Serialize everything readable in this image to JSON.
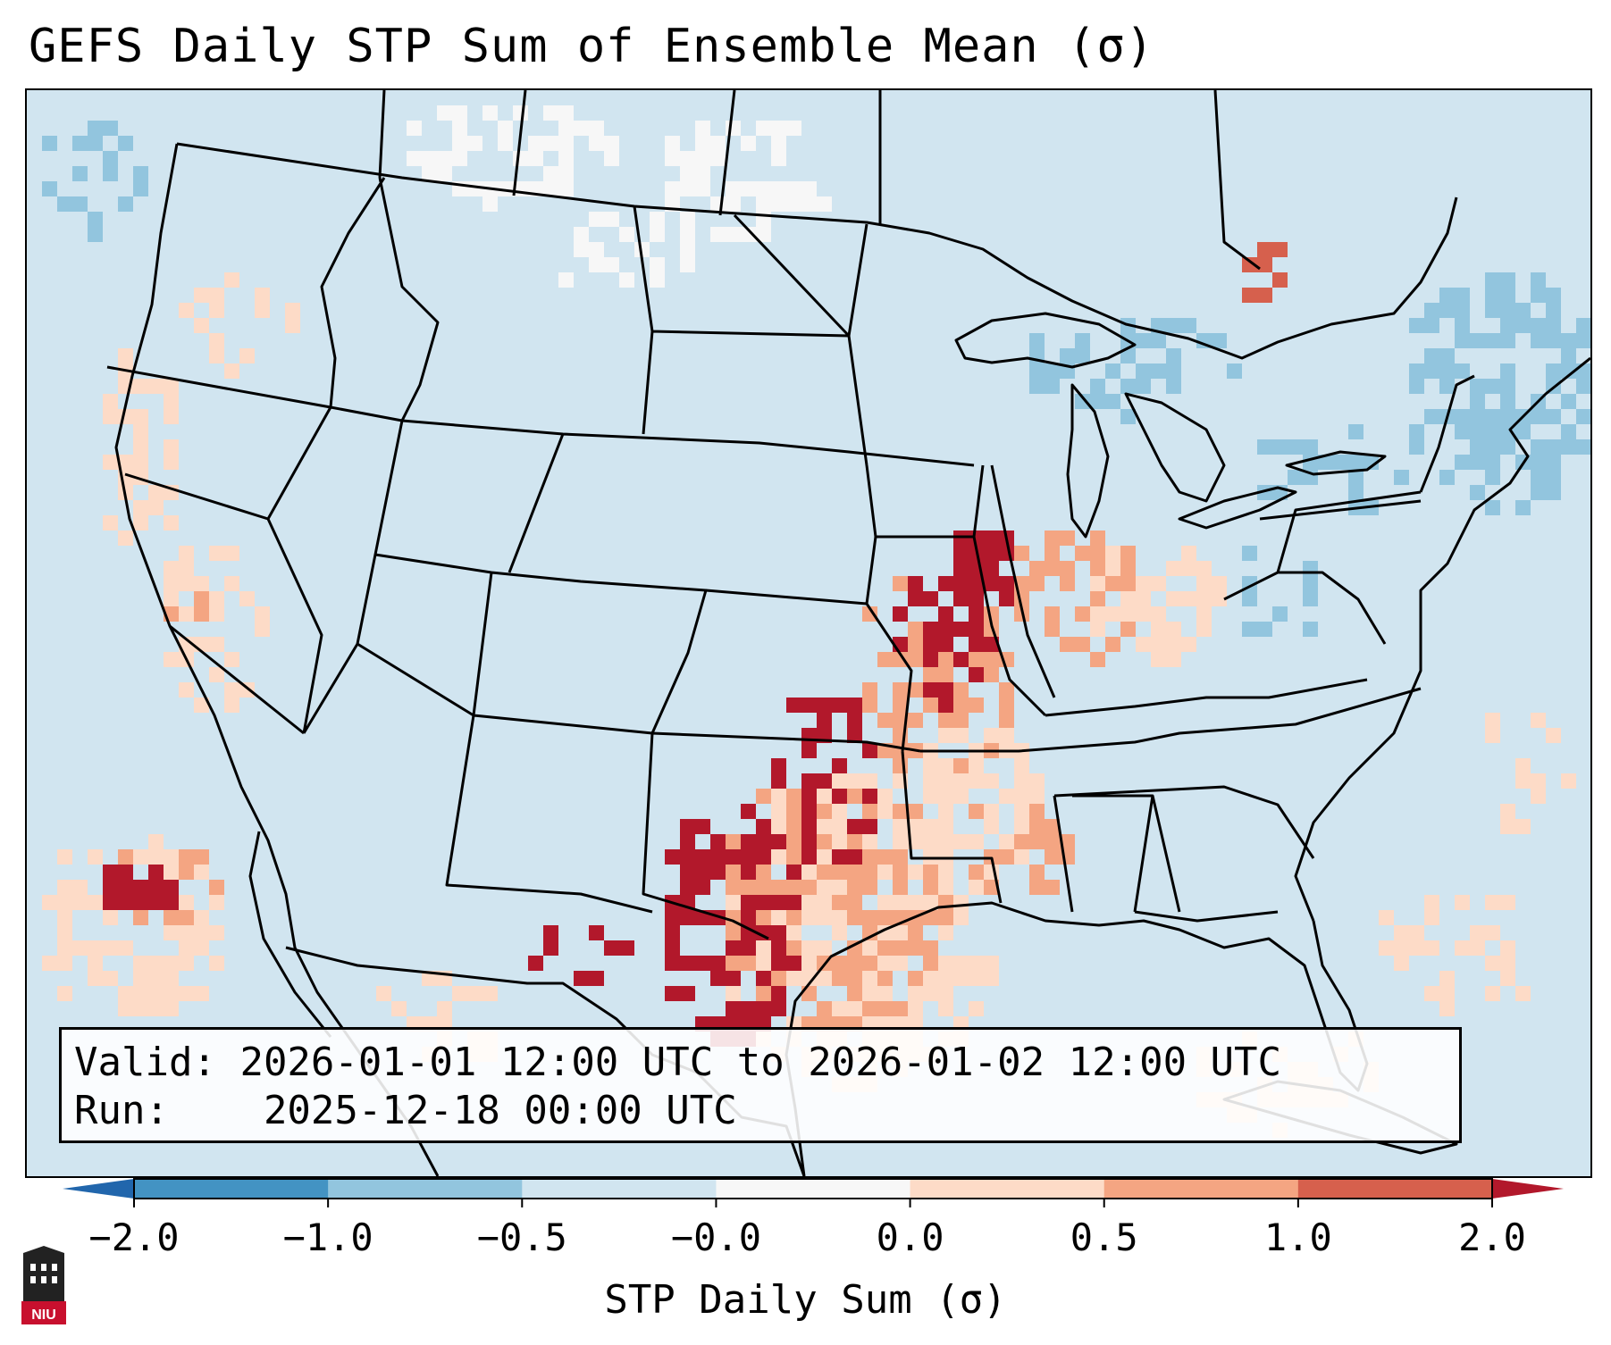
{
  "title": "GEFS Daily STP Sum of Ensemble Mean (σ)",
  "info": {
    "valid_label": "Valid:",
    "valid_value": "2026-01-01 12:00 UTC to 2026-01-02 12:00 UTC",
    "run_label": "Run:",
    "run_value": "2025-12-18 00:00 UTC"
  },
  "colorbar": {
    "label": "STP Daily Sum (σ)",
    "ticks": [
      "−2.0",
      "−1.0",
      "−0.5",
      "−0.0",
      "0.0",
      "0.5",
      "1.0",
      "2.0"
    ],
    "bins": [
      {
        "range": "-2.0 to -1.0",
        "color": "#4393c3"
      },
      {
        "range": "-1.0 to -0.5",
        "color": "#92c5de"
      },
      {
        "range": "-0.5 to -0.0",
        "color": "#d1e5f0"
      },
      {
        "range": "-0.0 to 0.0",
        "color": "#f7f7f7"
      },
      {
        "range": "0.0 to 0.5",
        "color": "#fddbc7"
      },
      {
        "range": "0.5 to 1.0",
        "color": "#f4a582"
      },
      {
        "range": "1.0 to 2.0",
        "color": "#d6604d"
      }
    ],
    "under_color": "#2166ac",
    "over_color": "#b2182b"
  },
  "map": {
    "region": "CONUS",
    "background_color": "#d1e5f0",
    "features": [
      "state-borders",
      "country-borders",
      "coastlines",
      "great-lakes"
    ]
  },
  "logo": {
    "text": "NIU",
    "color": "#c8102e"
  }
}
